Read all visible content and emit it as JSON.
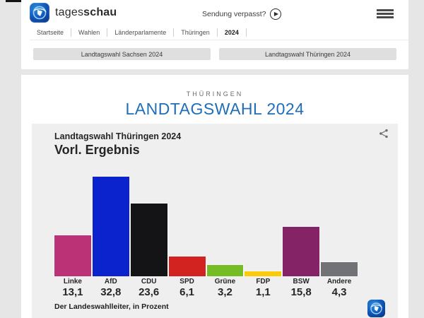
{
  "header": {
    "brand": {
      "regular": "tages",
      "bold": "schau"
    },
    "watch_label": "Sendung verpasst?",
    "icons": {
      "play": "play-circle",
      "menu": "hamburger",
      "logo": "tagesschau-globe"
    }
  },
  "breadcrumb": {
    "items": [
      "Startseite",
      "Wahlen",
      "Länderparlamente",
      "Thüringen",
      "2024"
    ],
    "active": "2024"
  },
  "tabs": [
    {
      "label": "Landtagswahl Sachsen 2024"
    },
    {
      "label": "Landtagswahl Thüringen 2024"
    }
  ],
  "page": {
    "kicker": "THÜRINGEN",
    "title": "LANDTAGSWAHL 2024",
    "title_color": "#1f6eb7"
  },
  "chart_data": {
    "type": "bar",
    "title": "Landtagswahl Thüringen 2024",
    "subtitle": "Vorl. Ergebnis",
    "source": "Der Landeswahlleiter, in Prozent",
    "unit": "percent",
    "categories": [
      "Linke",
      "AfD",
      "CDU",
      "SPD",
      "Grüne",
      "FDP",
      "BSW",
      "Andere"
    ],
    "values": [
      13.1,
      32.8,
      23.6,
      6.1,
      3.2,
      1.1,
      15.8,
      4.3
    ],
    "value_labels": [
      "13,1",
      "32,8",
      "23,6",
      "6,1",
      "3,2",
      "1,1",
      "15,8",
      "4,3"
    ],
    "colors": [
      "#bb3277",
      "#0a23cd",
      "#141417",
      "#d32320",
      "#76bc25",
      "#facb0a",
      "#852367",
      "#707275"
    ],
    "ylim": [
      0,
      35
    ],
    "grid": false,
    "legend": "none",
    "share_icon": "share-icon",
    "watermark_icon": "tagesschau-globe"
  }
}
